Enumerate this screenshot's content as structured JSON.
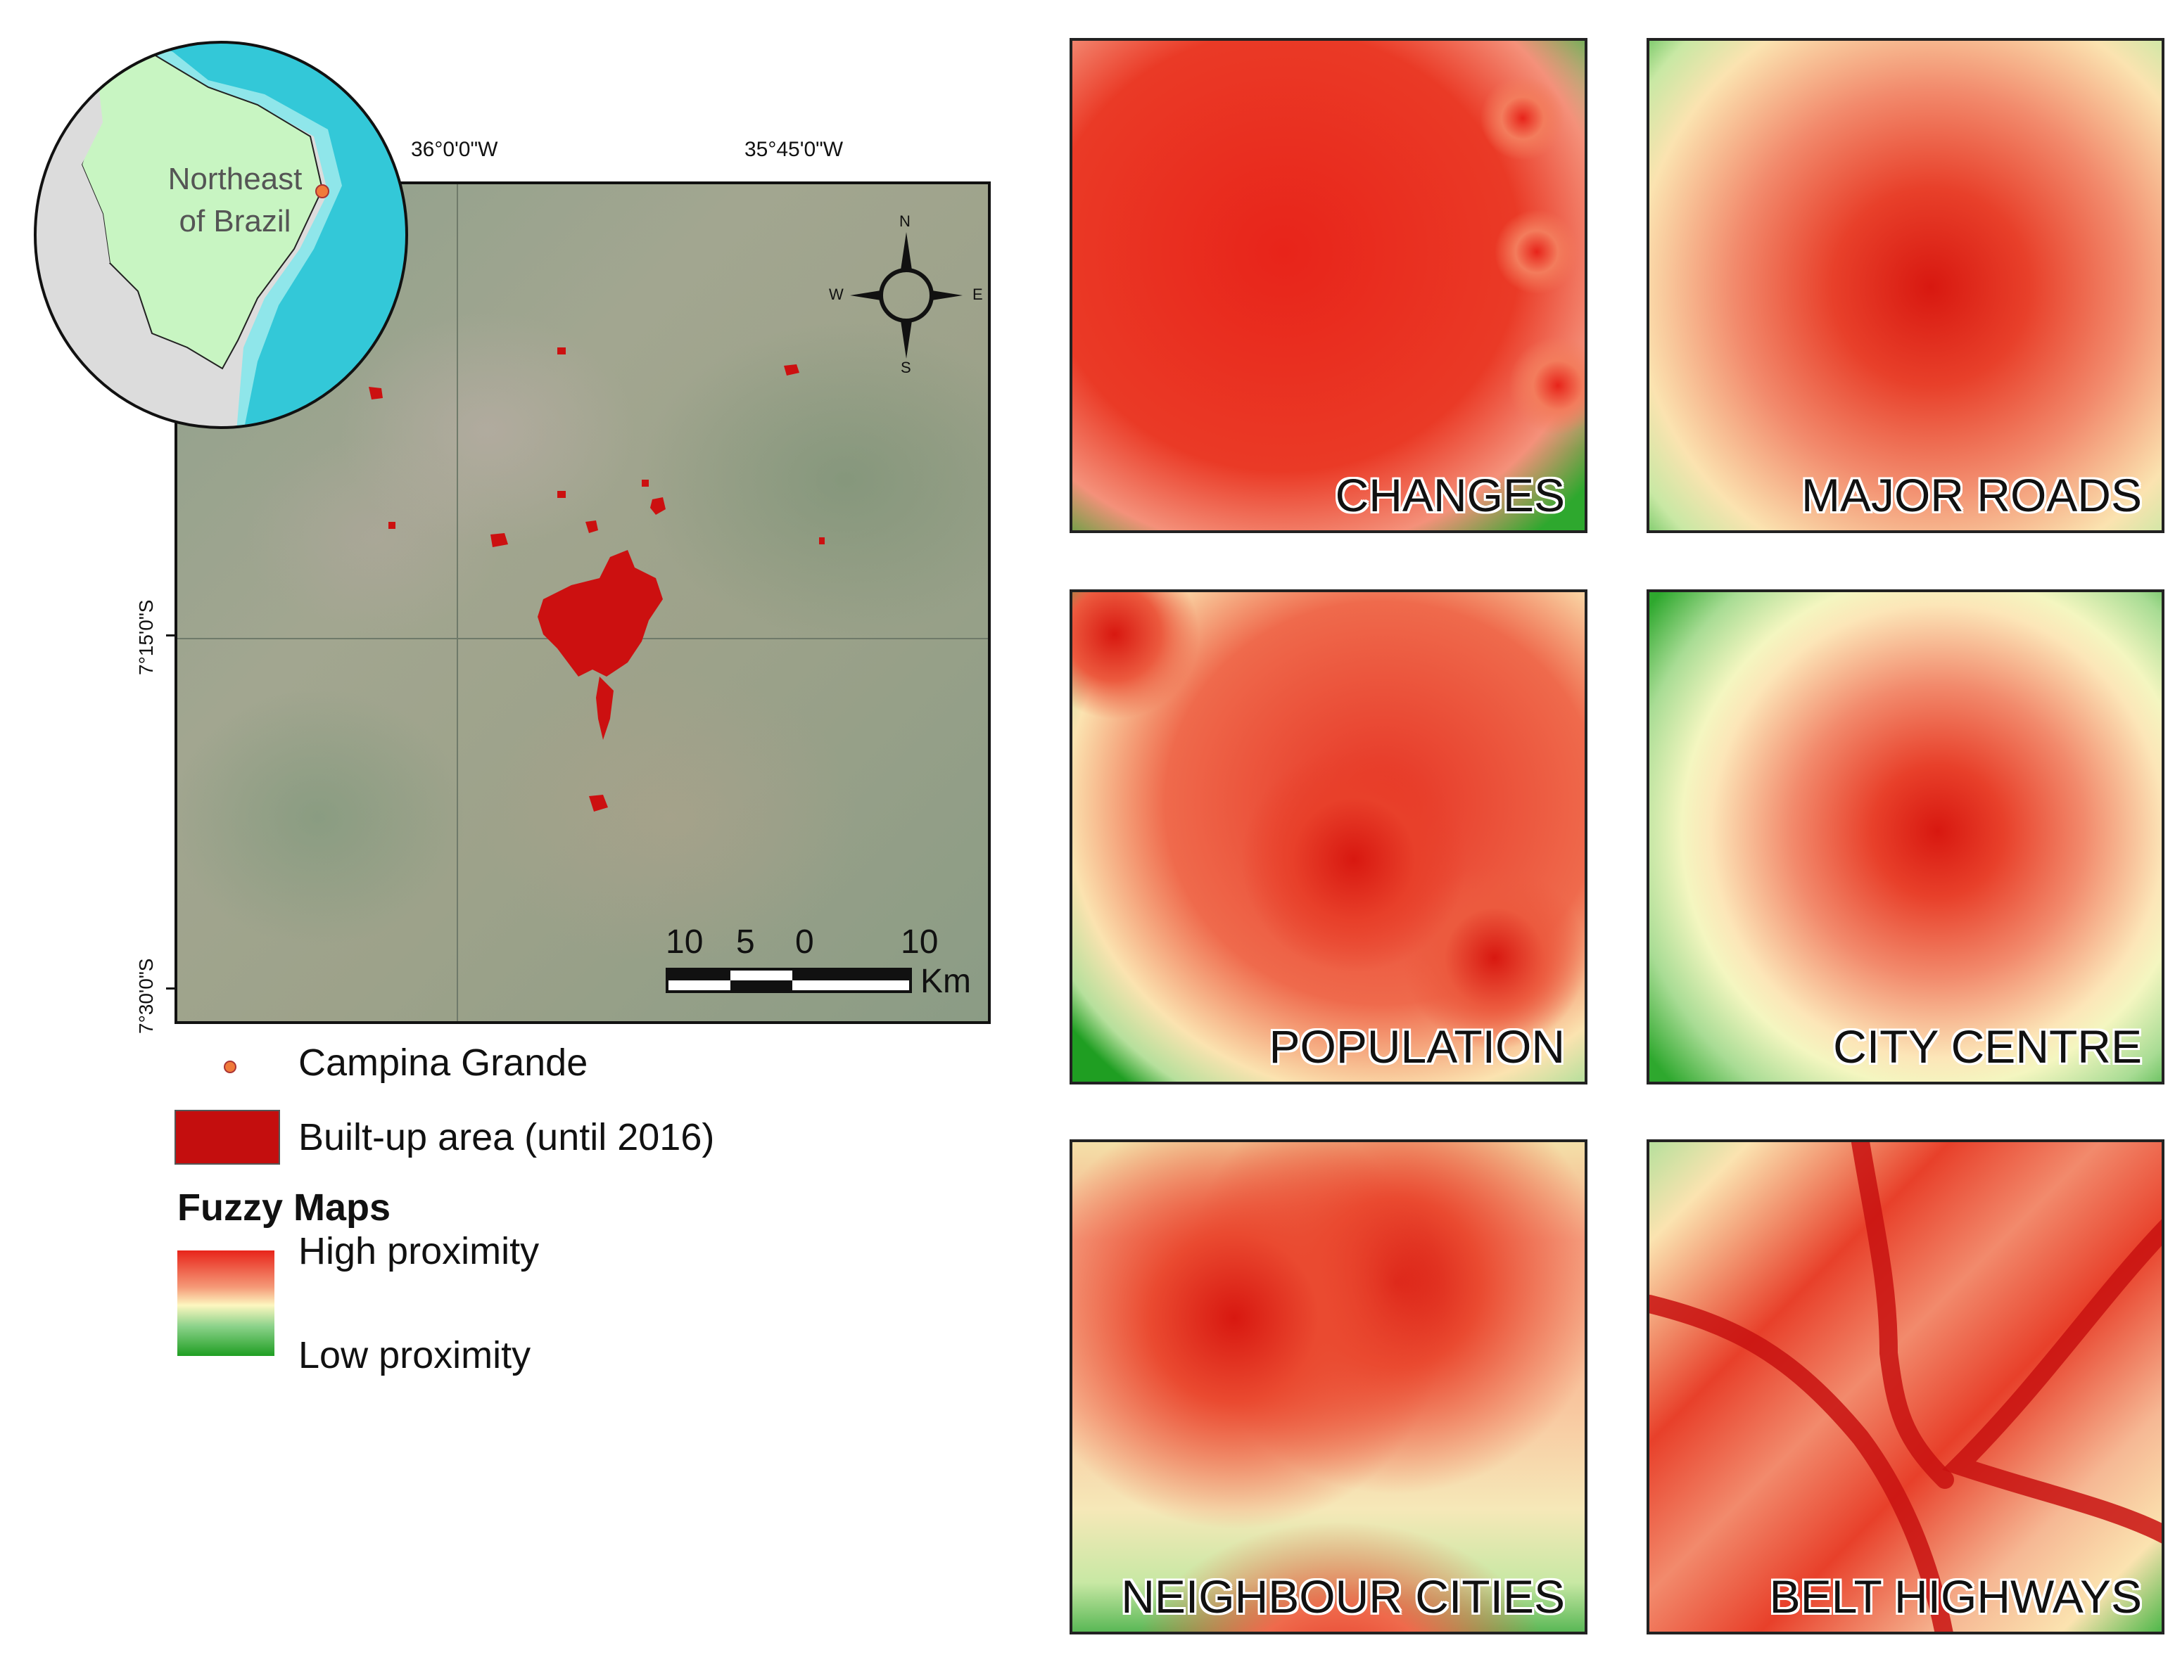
{
  "inset": {
    "region_label_line1": "Northeast",
    "region_label_line2": "of Brazil",
    "colors": {
      "land": "#c8f5c2",
      "ocean": "#33c8d8",
      "shallow": "#8fe6ea",
      "other_land": "#dcdcdc",
      "city_dot": "#f07a3a"
    }
  },
  "main_map": {
    "longitude_labels": [
      "36°0'0\"W",
      "35°45'0\"W"
    ],
    "latitude_labels": [
      "7°15'0\"S",
      "7°30'0\"S"
    ],
    "compass": {
      "n": "N",
      "s": "S",
      "e": "E",
      "w": "W"
    },
    "scale_bar": {
      "ticks": [
        "10",
        "5",
        "0",
        "10"
      ],
      "unit": "Km"
    },
    "colors": {
      "built_up": "#cc1010"
    }
  },
  "legend": {
    "city_label": "Campina Grande",
    "built_up_label": "Built-up area (until 2016)",
    "fuzzy_title": "Fuzzy Maps",
    "high_label": "High proximity",
    "low_label": "Low proximity",
    "colors": {
      "high": "#e8241a",
      "mid": "#fdf7c0",
      "low": "#1f9e22",
      "built_up": "#c40e0e",
      "city_dot": "#f07a3a"
    }
  },
  "panels": [
    {
      "label": "CHANGES"
    },
    {
      "label": "MAJOR ROADS"
    },
    {
      "label": "POPULATION"
    },
    {
      "label": "CITY CENTRE"
    },
    {
      "label": "NEIGHBOUR CITIES"
    },
    {
      "label": "BELT HIGHWAYS"
    }
  ]
}
